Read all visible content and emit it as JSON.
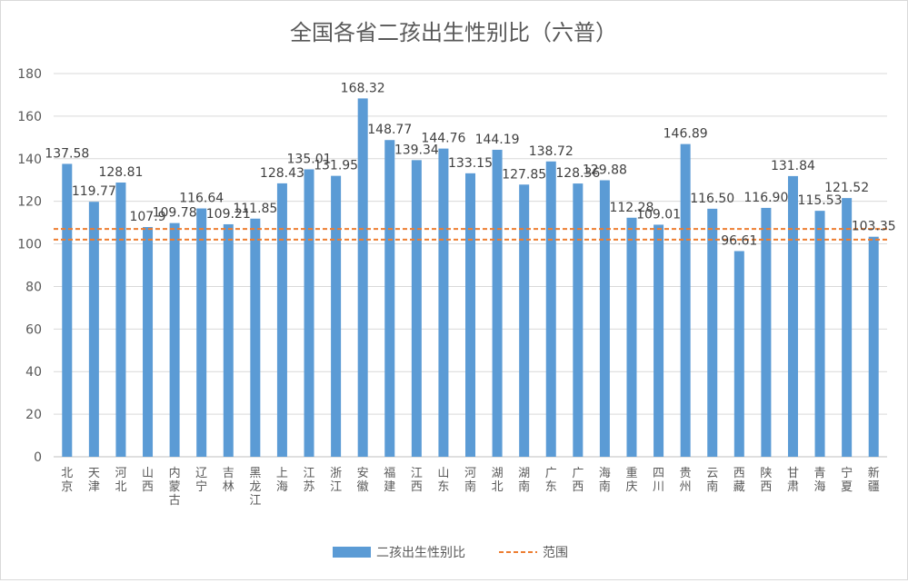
{
  "chart_data": {
    "type": "bar",
    "title": "全国各省二孩出生性别比（六普）",
    "categories": [
      "北京",
      "天津",
      "河北",
      "山西",
      "内蒙古",
      "辽宁",
      "吉林",
      "黑龙江",
      "上海",
      "江苏",
      "浙江",
      "安徽",
      "福建",
      "江西",
      "山东",
      "河南",
      "湖北",
      "湖南",
      "广东",
      "广西",
      "海南",
      "重庆",
      "四川",
      "贵州",
      "云南",
      "西藏",
      "陕西",
      "甘肃",
      "青海",
      "宁夏",
      "新疆"
    ],
    "series": [
      {
        "name": "二孩出生性别比",
        "color": "#5b9bd5",
        "values": [
          137.58,
          119.77,
          128.81,
          107.9,
          109.78,
          116.64,
          109.21,
          111.85,
          128.43,
          135.01,
          131.95,
          168.32,
          148.77,
          139.34,
          144.76,
          133.15,
          144.19,
          127.85,
          138.72,
          128.36,
          129.88,
          112.28,
          109.01,
          146.89,
          116.5,
          96.61,
          116.9,
          131.84,
          115.53,
          121.52,
          103.35
        ],
        "labels": [
          "137.58",
          "119.77",
          "128.81",
          "107.9",
          "109.78",
          "116.64",
          "109.21",
          "111.85",
          "128.43",
          "135.01",
          "131.95",
          "168.32",
          "148.77",
          "139.34",
          "144.76",
          "133.15",
          "144.19",
          "127.85",
          "138.72",
          "128.36",
          "129.88",
          "112.28",
          "109.01",
          "146.89",
          "116.50",
          "96.61",
          "116.90",
          "131.84",
          "115.53",
          "121.52",
          "103.35"
        ]
      }
    ],
    "range_lines": {
      "name": "范围",
      "color": "#ed7d31",
      "values": [
        102,
        107
      ]
    },
    "ylim": [
      0,
      180
    ],
    "yticks": [
      "0",
      "20",
      "40",
      "60",
      "80",
      "100",
      "120",
      "140",
      "160",
      "180"
    ],
    "grid": true,
    "legend_position": "bottom",
    "xlabel": "",
    "ylabel": ""
  }
}
